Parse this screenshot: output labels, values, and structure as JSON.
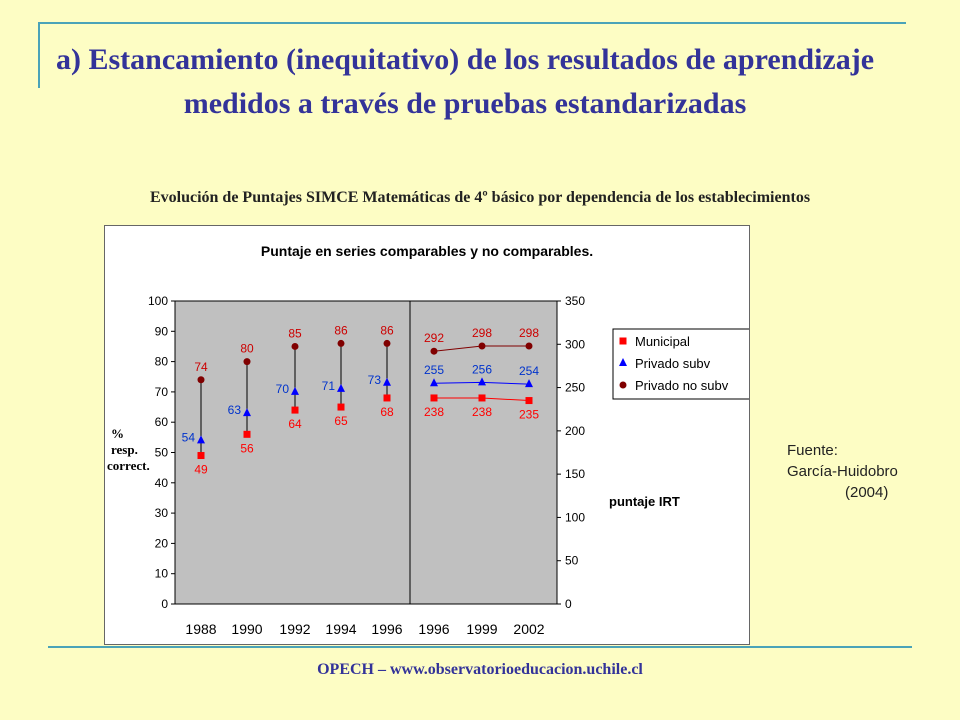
{
  "slide": {
    "title": "a) Estancamiento (inequitativo) de los resultados de aprendizaje medidos a través de pruebas estandarizadas",
    "subtitle": "Evolución de Puntajes SIMCE Matemáticas de 4º básico por dependencia de los establecimientos",
    "source_line1": "Fuente:",
    "source_line2": "García-Huidobro",
    "source_line3": "(2004)",
    "footer": "OPECH – www.observatorioeducacion.uchile.cl"
  },
  "chart_data": {
    "type": "scatter",
    "title": "Puntaje en series comparables y no comparables.",
    "categories": [
      "1988",
      "1990",
      "1992",
      "1994",
      "1996",
      "1996",
      "1999",
      "2002"
    ],
    "left_axis": {
      "label_lines": [
        "%",
        "resp.",
        "correct."
      ],
      "ylim": [
        0,
        100
      ],
      "ticks": [
        0,
        10,
        20,
        30,
        40,
        50,
        60,
        70,
        80,
        90,
        100
      ]
    },
    "right_axis": {
      "label": "puntaje IRT",
      "ylim": [
        0,
        350
      ],
      "ticks": [
        0,
        50,
        100,
        150,
        200,
        250,
        300,
        350
      ]
    },
    "legend_position": "right",
    "series": [
      {
        "name": "Municipal",
        "marker": "square",
        "color": "#ff0000",
        "label_color": "#ff0000",
        "left_values": [
          49,
          56,
          64,
          65,
          68
        ],
        "right_values": [
          238,
          238,
          235
        ]
      },
      {
        "name": "Privado subv",
        "marker": "triangle",
        "color": "#0000ff",
        "label_color": "#0033cc",
        "left_values": [
          54,
          63,
          70,
          71,
          73
        ],
        "right_values": [
          255,
          256,
          254
        ]
      },
      {
        "name": "Privado no subv",
        "marker": "circle",
        "color": "#800000",
        "label_color": "#cc0000",
        "left_values": [
          74,
          80,
          85,
          86,
          86
        ],
        "right_values": [
          292,
          298,
          298
        ]
      }
    ],
    "grid": false
  }
}
